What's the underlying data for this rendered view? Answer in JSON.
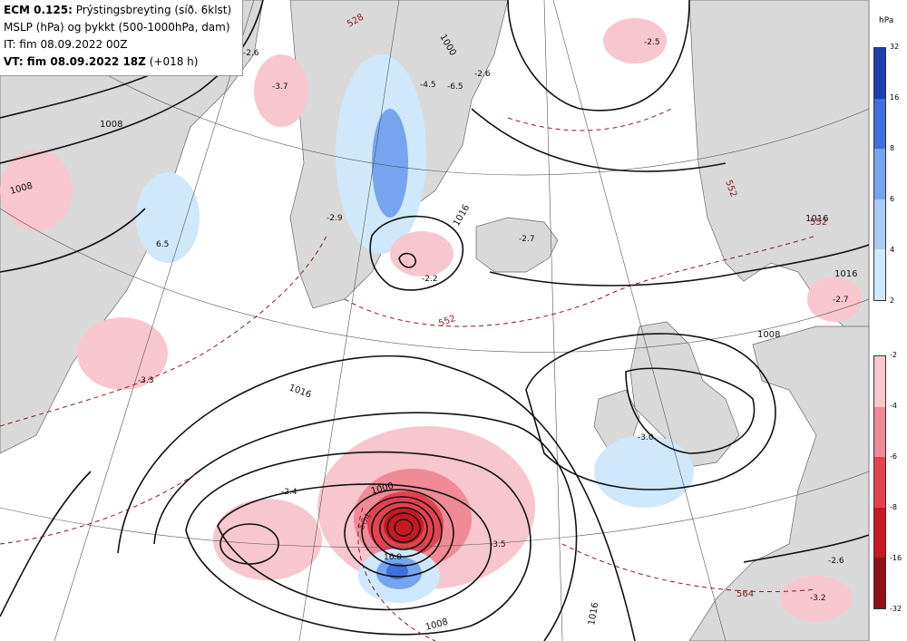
{
  "header": {
    "model": "ECM 0.125:",
    "field": "Prýstingsbreyting (síð. 6klst)",
    "line2": "MSLP (hPa) og þykkt (500-1000hPa, dam)",
    "line3": "IT: fim 08.09.2022 00Z",
    "line4_bold": "VT: fim 08.09.2022 18Z",
    "line4_rest": "(+018 h)"
  },
  "legend": {
    "unit": "hPa",
    "rise": [
      {
        "label": "32",
        "color": "#1f3fae"
      },
      {
        "label": "16",
        "color": "#3f6fe0"
      },
      {
        "label": "8",
        "color": "#76a4ef"
      },
      {
        "label": "6",
        "color": "#a9cdf7"
      },
      {
        "label": "4",
        "color": "#cfe8fb"
      },
      {
        "label": "2",
        "color": "#ffffff"
      }
    ],
    "fall": [
      {
        "label": "-2",
        "color": "#ffffff"
      },
      {
        "label": "-4",
        "color": "#f8c6ce"
      },
      {
        "label": "-6",
        "color": "#f08a97"
      },
      {
        "label": "-8",
        "color": "#e4424f"
      },
      {
        "label": "-16",
        "color": "#c91822"
      },
      {
        "label": "-32",
        "color": "#8e1217"
      }
    ]
  },
  "isobar_labels": [
    "1000",
    "1008",
    "1016",
    "1016",
    "1008",
    "1016",
    "1016",
    "1008",
    "1000",
    "1008",
    "1016"
  ],
  "thickness_labels": [
    "552",
    "564",
    "552",
    "552",
    "564",
    "528"
  ],
  "tendency_labels": [
    "-3.7",
    "-2.5",
    "-2.6",
    "-4.5",
    "-6.5",
    "-2.9",
    "-2.2",
    "-2.7",
    "-3.3",
    "-2.4",
    "-3.5",
    "-3.0",
    "-2.7",
    "-2.6",
    "-3.2",
    "16.0",
    "-2.6",
    "6.5"
  ]
}
